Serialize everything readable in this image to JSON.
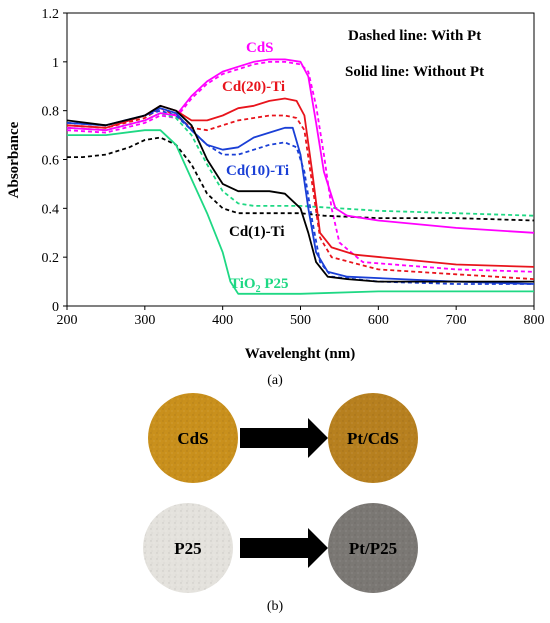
{
  "chart_data": {
    "type": "line",
    "xlabel": "Wavelenght (nm)",
    "ylabel": "Absorbance",
    "xlim": [
      200,
      800
    ],
    "ylim": [
      0,
      1.2
    ],
    "x_ticks": [
      "200",
      "300",
      "400",
      "500",
      "600",
      "700",
      "800"
    ],
    "y_ticks": [
      "0",
      "0.2",
      "0.4",
      "0.6",
      "0.8",
      "1",
      "1.2"
    ],
    "legend_notes": [
      "Dashed line: With Pt",
      "Solid line: Without Pt"
    ],
    "series": [
      {
        "name": "CdS",
        "color": "#ff00ff",
        "style": "solid",
        "points": [
          [
            200,
            0.73
          ],
          [
            250,
            0.72
          ],
          [
            300,
            0.76
          ],
          [
            320,
            0.79
          ],
          [
            340,
            0.78
          ],
          [
            360,
            0.86
          ],
          [
            380,
            0.92
          ],
          [
            400,
            0.96
          ],
          [
            420,
            0.98
          ],
          [
            440,
            1.0
          ],
          [
            460,
            1.01
          ],
          [
            480,
            1.01
          ],
          [
            500,
            1.0
          ],
          [
            510,
            0.94
          ],
          [
            520,
            0.75
          ],
          [
            530,
            0.55
          ],
          [
            545,
            0.4
          ],
          [
            560,
            0.37
          ],
          [
            600,
            0.35
          ],
          [
            700,
            0.32
          ],
          [
            800,
            0.3
          ]
        ]
      },
      {
        "name": "",
        "color": "#ff00ff",
        "style": "dashed",
        "points": [
          [
            200,
            0.72
          ],
          [
            250,
            0.71
          ],
          [
            300,
            0.75
          ],
          [
            320,
            0.78
          ],
          [
            340,
            0.77
          ],
          [
            360,
            0.85
          ],
          [
            380,
            0.91
          ],
          [
            400,
            0.95
          ],
          [
            420,
            0.97
          ],
          [
            440,
            0.99
          ],
          [
            460,
            1.0
          ],
          [
            480,
            1.0
          ],
          [
            500,
            0.99
          ],
          [
            510,
            0.96
          ],
          [
            520,
            0.82
          ],
          [
            530,
            0.62
          ],
          [
            540,
            0.4
          ],
          [
            550,
            0.26
          ],
          [
            580,
            0.18
          ],
          [
            700,
            0.15
          ],
          [
            800,
            0.14
          ]
        ]
      },
      {
        "name": "Cd(20)-Ti",
        "color": "#e8141c",
        "style": "solid",
        "points": [
          [
            200,
            0.74
          ],
          [
            250,
            0.73
          ],
          [
            300,
            0.78
          ],
          [
            320,
            0.82
          ],
          [
            340,
            0.8
          ],
          [
            360,
            0.76
          ],
          [
            380,
            0.76
          ],
          [
            400,
            0.78
          ],
          [
            420,
            0.81
          ],
          [
            440,
            0.82
          ],
          [
            460,
            0.84
          ],
          [
            480,
            0.85
          ],
          [
            495,
            0.84
          ],
          [
            505,
            0.78
          ],
          [
            515,
            0.55
          ],
          [
            525,
            0.3
          ],
          [
            540,
            0.24
          ],
          [
            570,
            0.21
          ],
          [
            700,
            0.17
          ],
          [
            800,
            0.16
          ]
        ]
      },
      {
        "name": "",
        "color": "#e8141c",
        "style": "dashed",
        "points": [
          [
            200,
            0.74
          ],
          [
            250,
            0.73
          ],
          [
            300,
            0.77
          ],
          [
            320,
            0.81
          ],
          [
            340,
            0.78
          ],
          [
            360,
            0.73
          ],
          [
            380,
            0.72
          ],
          [
            400,
            0.74
          ],
          [
            420,
            0.76
          ],
          [
            440,
            0.77
          ],
          [
            460,
            0.78
          ],
          [
            480,
            0.78
          ],
          [
            495,
            0.77
          ],
          [
            505,
            0.72
          ],
          [
            515,
            0.5
          ],
          [
            525,
            0.28
          ],
          [
            540,
            0.2
          ],
          [
            600,
            0.15
          ],
          [
            700,
            0.13
          ],
          [
            800,
            0.11
          ]
        ]
      },
      {
        "name": "Cd(10)-Ti",
        "color": "#1a3fd6",
        "style": "solid",
        "points": [
          [
            200,
            0.75
          ],
          [
            250,
            0.74
          ],
          [
            300,
            0.78
          ],
          [
            320,
            0.81
          ],
          [
            340,
            0.79
          ],
          [
            360,
            0.72
          ],
          [
            380,
            0.66
          ],
          [
            400,
            0.64
          ],
          [
            420,
            0.65
          ],
          [
            440,
            0.69
          ],
          [
            460,
            0.71
          ],
          [
            480,
            0.73
          ],
          [
            490,
            0.73
          ],
          [
            500,
            0.62
          ],
          [
            510,
            0.4
          ],
          [
            520,
            0.22
          ],
          [
            535,
            0.14
          ],
          [
            560,
            0.12
          ],
          [
            700,
            0.1
          ],
          [
            800,
            0.09
          ]
        ]
      },
      {
        "name": "",
        "color": "#1a3fd6",
        "style": "dashed",
        "points": [
          [
            200,
            0.75
          ],
          [
            250,
            0.74
          ],
          [
            300,
            0.78
          ],
          [
            320,
            0.8
          ],
          [
            340,
            0.78
          ],
          [
            360,
            0.72
          ],
          [
            380,
            0.66
          ],
          [
            400,
            0.62
          ],
          [
            420,
            0.62
          ],
          [
            440,
            0.64
          ],
          [
            460,
            0.66
          ],
          [
            480,
            0.67
          ],
          [
            495,
            0.65
          ],
          [
            505,
            0.55
          ],
          [
            515,
            0.35
          ],
          [
            525,
            0.18
          ],
          [
            540,
            0.12
          ],
          [
            600,
            0.1
          ],
          [
            700,
            0.09
          ],
          [
            800,
            0.09
          ]
        ]
      },
      {
        "name": "Cd(1)-Ti",
        "color": "#000000",
        "style": "solid",
        "points": [
          [
            200,
            0.76
          ],
          [
            250,
            0.74
          ],
          [
            300,
            0.78
          ],
          [
            320,
            0.82
          ],
          [
            340,
            0.8
          ],
          [
            360,
            0.74
          ],
          [
            380,
            0.6
          ],
          [
            400,
            0.5
          ],
          [
            420,
            0.47
          ],
          [
            440,
            0.47
          ],
          [
            460,
            0.47
          ],
          [
            480,
            0.46
          ],
          [
            500,
            0.4
          ],
          [
            510,
            0.3
          ],
          [
            520,
            0.18
          ],
          [
            535,
            0.12
          ],
          [
            560,
            0.11
          ],
          [
            600,
            0.1
          ],
          [
            700,
            0.1
          ],
          [
            800,
            0.1
          ]
        ]
      },
      {
        "name": "",
        "color": "#000000",
        "style": "dashed",
        "points": [
          [
            200,
            0.61
          ],
          [
            220,
            0.61
          ],
          [
            250,
            0.62
          ],
          [
            280,
            0.65
          ],
          [
            300,
            0.68
          ],
          [
            320,
            0.69
          ],
          [
            340,
            0.66
          ],
          [
            360,
            0.58
          ],
          [
            380,
            0.46
          ],
          [
            400,
            0.4
          ],
          [
            420,
            0.38
          ],
          [
            440,
            0.38
          ],
          [
            460,
            0.38
          ],
          [
            480,
            0.38
          ],
          [
            500,
            0.38
          ],
          [
            530,
            0.37
          ],
          [
            600,
            0.36
          ],
          [
            700,
            0.36
          ],
          [
            800,
            0.35
          ]
        ]
      },
      {
        "name": "TiO2 P25",
        "color": "#1fd884",
        "style": "solid",
        "points": [
          [
            200,
            0.7
          ],
          [
            250,
            0.7
          ],
          [
            300,
            0.72
          ],
          [
            320,
            0.72
          ],
          [
            340,
            0.66
          ],
          [
            360,
            0.52
          ],
          [
            380,
            0.38
          ],
          [
            400,
            0.22
          ],
          [
            410,
            0.1
          ],
          [
            420,
            0.05
          ],
          [
            440,
            0.05
          ],
          [
            500,
            0.05
          ],
          [
            600,
            0.06
          ],
          [
            700,
            0.06
          ],
          [
            800,
            0.06
          ]
        ]
      },
      {
        "name": "",
        "color": "#1fd884",
        "style": "dashed",
        "points": [
          [
            200,
            0.73
          ],
          [
            250,
            0.72
          ],
          [
            300,
            0.76
          ],
          [
            320,
            0.79
          ],
          [
            340,
            0.77
          ],
          [
            360,
            0.7
          ],
          [
            380,
            0.58
          ],
          [
            400,
            0.47
          ],
          [
            420,
            0.42
          ],
          [
            440,
            0.41
          ],
          [
            460,
            0.41
          ],
          [
            480,
            0.41
          ],
          [
            500,
            0.41
          ],
          [
            550,
            0.4
          ],
          [
            600,
            0.39
          ],
          [
            700,
            0.38
          ],
          [
            800,
            0.37
          ]
        ]
      }
    ]
  },
  "annotations": {
    "cds": "CdS",
    "cd20": "Cd(20)-Ti",
    "cd10": "Cd(10)-Ti",
    "cd1": "Cd(1)-Ti",
    "tio2_main": "TiO",
    "tio2_sub": "2",
    "tio2_tail": " P25"
  },
  "panel_a_label": "(a)",
  "panel_b_label": "(b)",
  "samples": [
    {
      "label": "CdS",
      "color": "#c9901c",
      "text_color": "#111111"
    },
    {
      "label": "Pt/CdS",
      "color": "#b7801f",
      "text_color": "#111111"
    },
    {
      "label": "P25",
      "color": "#e4e2dd",
      "text_color": "#111111"
    },
    {
      "label": "Pt/P25",
      "color": "#7b7874",
      "text_color": "#111111"
    }
  ]
}
